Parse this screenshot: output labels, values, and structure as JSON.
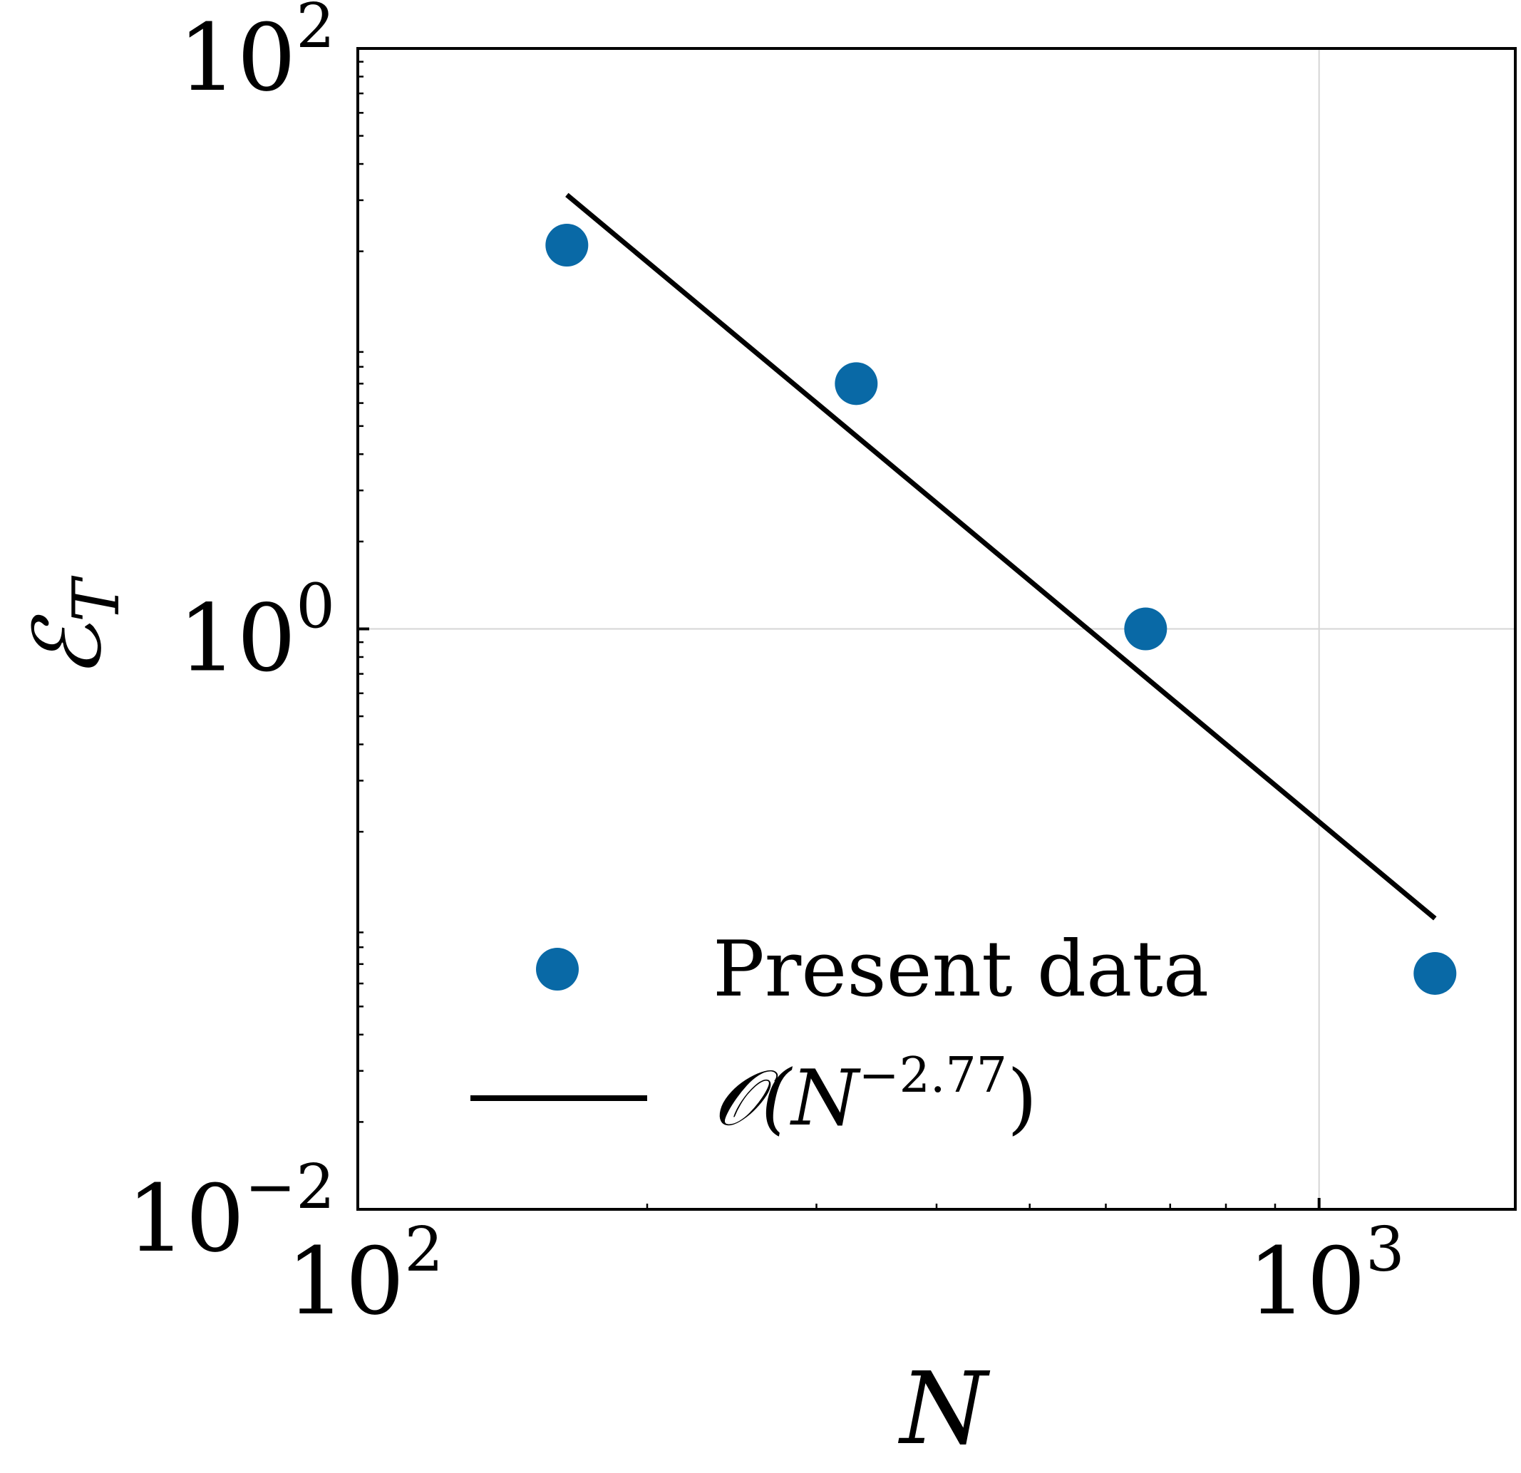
{
  "chart_data": {
    "type": "scatter",
    "xscale": "log",
    "yscale": "log",
    "xlim": [
      100,
      1600
    ],
    "ylim": [
      0.01,
      100
    ],
    "grid": true,
    "legend_position": "lower-left",
    "xlabel": "N",
    "ylabel": "ℰT",
    "xticks": [
      {
        "value": 100,
        "base": "10",
        "exp": "2"
      },
      {
        "value": 1000,
        "base": "10",
        "exp": "3"
      }
    ],
    "yticks": [
      {
        "value": 100,
        "base": "10",
        "exp": "2"
      },
      {
        "value": 1,
        "base": "10",
        "exp": "0"
      },
      {
        "value": 0.01,
        "base": "10",
        "exp": "−2"
      }
    ],
    "series": [
      {
        "name": "Present data",
        "kind": "scatter",
        "color": "#0969a6",
        "x": [
          165,
          330,
          660,
          1320
        ],
        "y": [
          21.0,
          7.0,
          1.0,
          0.065
        ]
      },
      {
        "name": "𝒪(N−2.77)",
        "kind": "line",
        "color": "#000000",
        "x": [
          165,
          1320
        ],
        "y": [
          31.3,
          0.1005
        ]
      }
    ],
    "legend": [
      {
        "label": "Present data",
        "marker": "circle"
      },
      {
        "label_main": "𝒪(",
        "label_var": "N",
        "label_sup": "−2.77",
        "label_close": ")",
        "marker": "line"
      }
    ]
  }
}
